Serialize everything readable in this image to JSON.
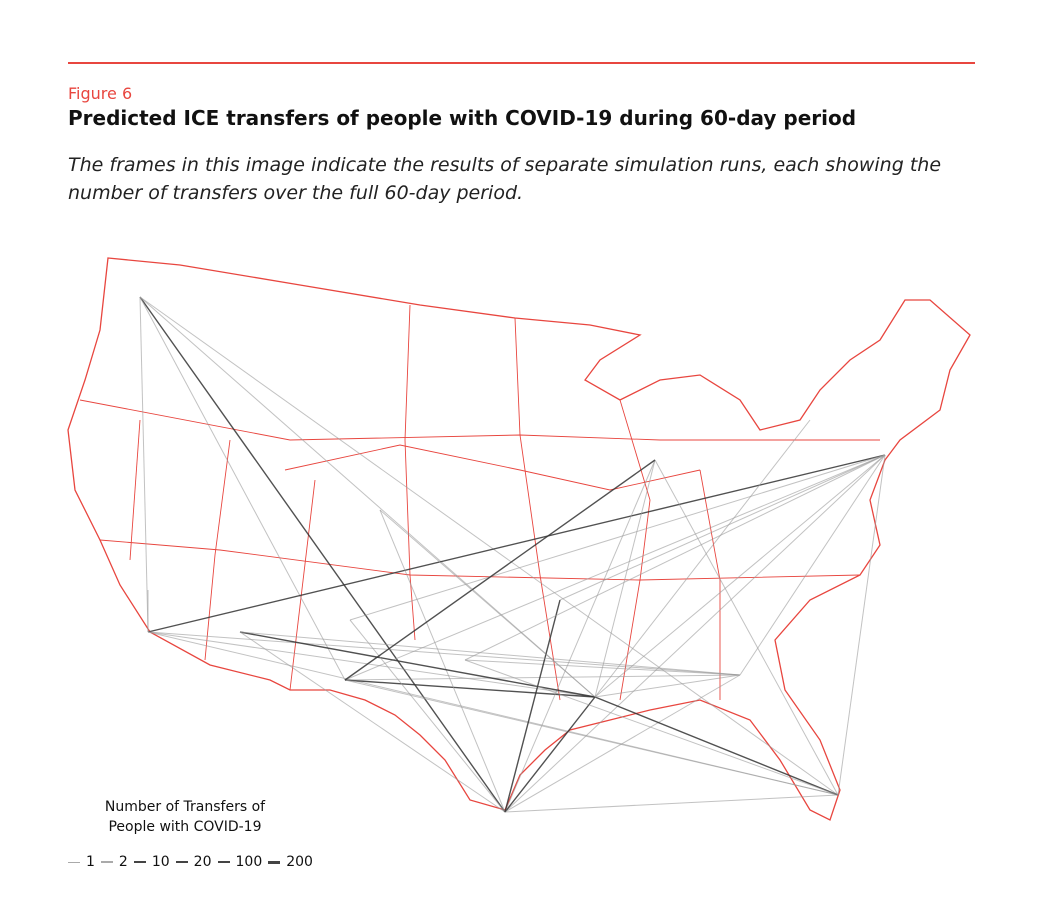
{
  "figure_label": "Figure 6",
  "title": "Predicted ICE transfers of people with COVID-19 during 60-day period",
  "subtitle": "The frames in this image indicate the results of separate simulation runs, each showing the number of transfers over the full 60-day period.",
  "legend": {
    "title_lines": [
      "Number of Transfers of",
      "People with COVID-19"
    ],
    "values": [
      1,
      2,
      10,
      20,
      100,
      200
    ]
  }
}
